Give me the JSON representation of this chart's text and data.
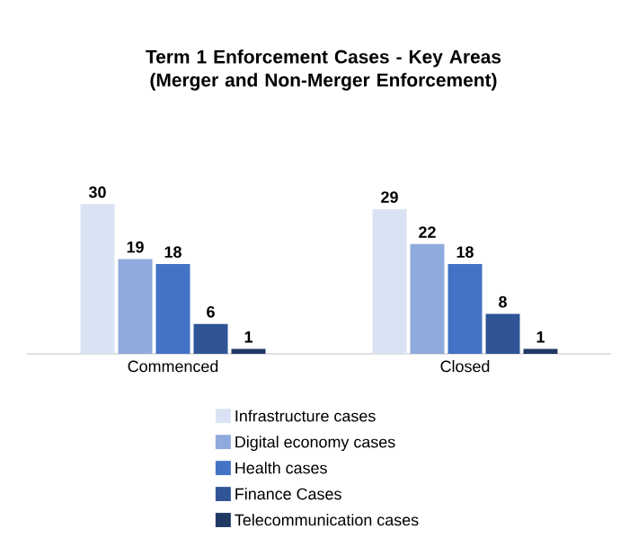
{
  "chart_data": {
    "type": "bar",
    "title": "Term 1 Enforcement Cases - Key Areas\n(Merger and Non-Merger Enforcement)",
    "categories": [
      "Commenced",
      "Closed"
    ],
    "series": [
      {
        "name": "Infrastructure cases",
        "color": "#dae3f3",
        "values": [
          30,
          29
        ]
      },
      {
        "name": "Digital economy cases",
        "color": "#8faadc",
        "values": [
          19,
          22
        ]
      },
      {
        "name": "Health cases",
        "color": "#4472c4",
        "values": [
          18,
          18
        ]
      },
      {
        "name": "Finance Cases",
        "color": "#2f5597",
        "values": [
          6,
          8
        ]
      },
      {
        "name": "Telecommunication cases",
        "color": "#1f3864",
        "values": [
          1,
          1
        ]
      }
    ],
    "data_labels": true,
    "legend": "bottom",
    "tick_labels": "x"
  }
}
